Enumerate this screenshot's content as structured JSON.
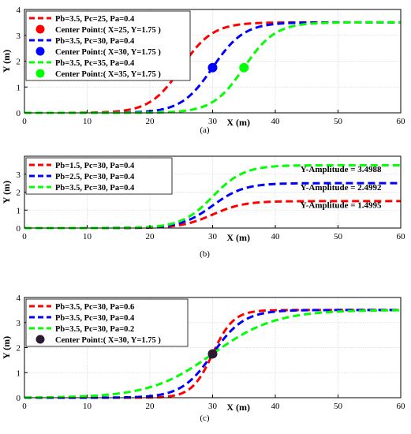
{
  "chart_data": [
    {
      "type": "line",
      "caption": "(a)",
      "xlabel": "X (m)",
      "ylabel": "Y (m)",
      "xlim": [
        0,
        60
      ],
      "ylim": [
        0,
        4
      ],
      "xticks": [
        0,
        10,
        20,
        30,
        40,
        50,
        60
      ],
      "yticks": [
        0,
        1,
        2,
        3,
        4
      ],
      "grid": true,
      "legend": "top-left",
      "series": [
        {
          "name": "Pb=3.5, Pc=25, Pa=0.4",
          "color": "#ff0000",
          "Pb": 3.5,
          "Pc": 25,
          "Pa": 0.4
        },
        {
          "name": "Pb=3.5, Pc=30, Pa=0.4",
          "color": "#0000ff",
          "Pb": 3.5,
          "Pc": 30,
          "Pa": 0.4
        },
        {
          "name": "Pb=3.5, Pc=35, Pa=0.4",
          "color": "#00ff00",
          "Pb": 3.5,
          "Pc": 35,
          "Pa": 0.4
        }
      ],
      "points": [
        {
          "name": "Center Point:( X=25, Y=1.75 )",
          "x": 25,
          "y": 1.75,
          "color": "#ff0000"
        },
        {
          "name": "Center Point:( X=30, Y=1.75 )",
          "x": 30,
          "y": 1.75,
          "color": "#0000ff"
        },
        {
          "name": "Center Point:( X=35, Y=1.75 )",
          "x": 35,
          "y": 1.75,
          "color": "#00ff00"
        }
      ],
      "annotations": []
    },
    {
      "type": "line",
      "caption": "(b)",
      "xlabel": "X (m)",
      "ylabel": "Y (m)",
      "xlim": [
        0,
        60
      ],
      "ylim": [
        0,
        4
      ],
      "xticks": [
        0,
        10,
        20,
        30,
        40,
        50,
        60
      ],
      "yticks": [
        0,
        1,
        2,
        3
      ],
      "grid": true,
      "legend": "top-left",
      "series": [
        {
          "name": "Pb=1.5, Pc=30, Pa=0.4",
          "color": "#ff0000",
          "Pb": 1.5,
          "Pc": 30,
          "Pa": 0.4
        },
        {
          "name": "Pb=2.5, Pc=30, Pa=0.4",
          "color": "#0000ff",
          "Pb": 2.5,
          "Pc": 30,
          "Pa": 0.4
        },
        {
          "name": "Pb=3.5, Pc=30, Pa=0.4",
          "color": "#00ff00",
          "Pb": 3.5,
          "Pc": 30,
          "Pa": 0.4
        }
      ],
      "points": [],
      "annotations": [
        {
          "text": "Y-Amplitude = 3.4988",
          "x": 44,
          "y": 3.12
        },
        {
          "text": "Y-Amplitude = 2.4992",
          "x": 44,
          "y": 2.12
        },
        {
          "text": "Y-Amplitude = 1.4995",
          "x": 44,
          "y": 1.12
        }
      ]
    },
    {
      "type": "line",
      "caption": "(c)",
      "xlabel": "X (m)",
      "ylabel": "Y (m)",
      "xlim": [
        0,
        60
      ],
      "ylim": [
        0,
        4
      ],
      "xticks": [
        0,
        10,
        20,
        30,
        40,
        50,
        60
      ],
      "yticks": [
        0,
        1,
        2,
        3,
        4
      ],
      "grid": true,
      "legend": "top-left",
      "series": [
        {
          "name": "Pb=3.5, Pc=30, Pa=0.6",
          "color": "#ff0000",
          "Pb": 3.5,
          "Pc": 30,
          "Pa": 0.6
        },
        {
          "name": "Pb=3.5, Pc=30, Pa=0.4",
          "color": "#0000ff",
          "Pb": 3.5,
          "Pc": 30,
          "Pa": 0.4
        },
        {
          "name": "Pb=3.5, Pc=30, Pa=0.2",
          "color": "#00ff00",
          "Pb": 3.5,
          "Pc": 30,
          "Pa": 0.2
        }
      ],
      "points": [
        {
          "name": "Center Point:( X=30, Y=1.75 )",
          "x": 30,
          "y": 1.75,
          "color": "#2b1a33"
        }
      ],
      "annotations": []
    }
  ]
}
